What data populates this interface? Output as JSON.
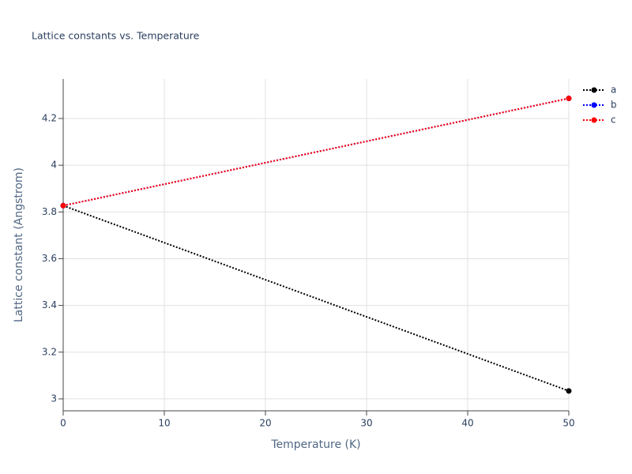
{
  "chart_data": {
    "type": "line",
    "title": "Lattice constants vs. Temperature",
    "x_label": "Temperature (K)",
    "y_label": "Lattice constant (Angstrom)",
    "x": [
      0,
      50
    ],
    "series": [
      {
        "name": "a",
        "color": "#000000",
        "values": [
          3.827,
          3.034
        ]
      },
      {
        "name": "b",
        "color": "#0000ff",
        "values": [
          3.827,
          4.286
        ]
      },
      {
        "name": "c",
        "color": "#ff0000",
        "values": [
          3.827,
          4.286
        ]
      }
    ],
    "xlim": [
      0,
      50
    ],
    "xticks": [
      0,
      10,
      20,
      30,
      40,
      50
    ],
    "ylim": [
      2.949,
      4.369
    ],
    "yticks": [
      3,
      3.2,
      3.4,
      3.6,
      3.8,
      4,
      4.2
    ],
    "grid": true,
    "legend": "top-right"
  }
}
